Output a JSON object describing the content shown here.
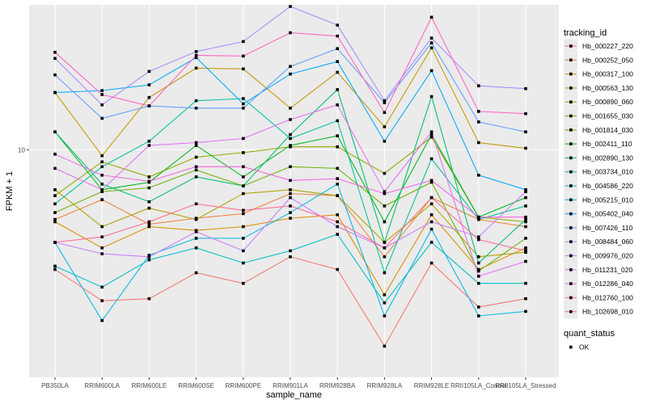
{
  "chart_data": {
    "type": "line",
    "title": "",
    "xlabel": "sample_name",
    "ylabel": "FPKM + 1",
    "yscale": "log10",
    "ylim": [
      2.1,
      27
    ],
    "yticks": [
      10
    ],
    "ytick_labels": [
      "10"
    ],
    "categories": [
      "PB350LA",
      "RRIM600LA",
      "RRIM600LE",
      "RRIM600SE",
      "RRIM600PE",
      "RRIM901LA",
      "RRIM928BA",
      "RRIM928LA",
      "RRIM928LE",
      "RRII105LA_Control",
      "RRII105LA_Stressed"
    ],
    "category_labels": [
      "PB350LA",
      "RRIM600LA",
      "RRIM600LE",
      "RRIM600SE",
      "RRIM600PE",
      "RRIM901LA",
      "RRIM928BA",
      "RRIM928LA",
      "RRIM928LE",
      "RRII105LA_Control",
      "RRII105LA_Stressed"
    ],
    "legend_title": "tracking_id",
    "shape_legend_title": "quant_status",
    "shape_legend_label": "OK",
    "series": [
      {
        "name": "Hb_000227_220",
        "color": "#F8766D",
        "values": [
          4.4,
          3.55,
          3.6,
          4.3,
          4.0,
          4.8,
          4.4,
          2.6,
          4.6,
          3.4,
          3.6
        ]
      },
      {
        "name": "Hb_000252_050",
        "color": "#EC8239",
        "values": [
          6.2,
          7.1,
          6.0,
          6.25,
          6.45,
          7.4,
          7.3,
          4.8,
          7.2,
          6.2,
          5.9
        ]
      },
      {
        "name": "Hb_000317_100",
        "color": "#DB8E00",
        "values": [
          6.1,
          5.1,
          5.9,
          5.75,
          5.9,
          6.25,
          6.4,
          3.7,
          6.4,
          4.4,
          5.1
        ]
      },
      {
        "name": "Hb_000563_130",
        "color": "#C79800",
        "values": [
          14.8,
          9.6,
          14.3,
          17.5,
          17.4,
          13.3,
          17.0,
          11.7,
          20.1,
          10.5,
          10.1
        ]
      },
      {
        "name": "Hb_000890_060",
        "color": "#AFA100",
        "values": [
          7.6,
          5.9,
          6.7,
          6.2,
          7.4,
          7.6,
          7.3,
          5.3,
          6.9,
          4.8,
          4.95
        ]
      },
      {
        "name": "Hb_001655_030",
        "color": "#93AA00",
        "values": [
          7.3,
          9.2,
          8.3,
          9.5,
          9.8,
          10.2,
          10.2,
          8.5,
          10.9,
          6.3,
          6.1
        ]
      },
      {
        "name": "Hb_001814_030",
        "color": "#6BB100",
        "values": [
          6.5,
          7.5,
          7.7,
          8.7,
          7.8,
          8.9,
          8.8,
          6.8,
          8.0,
          4.35,
          5.45
        ]
      },
      {
        "name": "Hb_002411_110",
        "color": "#00B81F",
        "values": [
          11.3,
          7.6,
          8.0,
          10.3,
          8.3,
          10.3,
          11.0,
          6.1,
          11.1,
          6.3,
          7.2
        ]
      },
      {
        "name": "Hb_002890_130",
        "color": "#00BE6C",
        "values": [
          11.3,
          7.9,
          7.0,
          8.3,
          7.8,
          11.1,
          15.1,
          5.3,
          14.4,
          4.6,
          6.2
        ]
      },
      {
        "name": "Hb_003734_010",
        "color": "#00C19F",
        "values": [
          6.9,
          8.9,
          10.6,
          14.0,
          14.2,
          10.8,
          12.2,
          4.3,
          9.4,
          6.2,
          6.8
        ]
      },
      {
        "name": "Hb_004586_220",
        "color": "#00BFC4",
        "values": [
          4.5,
          3.9,
          4.7,
          5.1,
          4.6,
          5.0,
          5.6,
          3.5,
          5.3,
          4.0,
          4.0
        ]
      },
      {
        "name": "Hb_005215_010",
        "color": "#00B8E7",
        "values": [
          5.3,
          3.1,
          4.85,
          5.45,
          5.45,
          6.5,
          7.9,
          3.2,
          5.8,
          3.2,
          3.3
        ]
      },
      {
        "name": "Hb_005402_040",
        "color": "#00A9FF",
        "values": [
          14.8,
          15.0,
          15.6,
          18.8,
          13.7,
          16.8,
          18.3,
          10.6,
          17.2,
          8.4,
          7.6
        ]
      },
      {
        "name": "Hb_007426_110",
        "color": "#619CFF",
        "values": [
          16.7,
          12.4,
          13.5,
          13.3,
          13.3,
          17.7,
          20.0,
          13.8,
          20.8,
          12.1,
          11.3
        ]
      },
      {
        "name": "Hb_008484_060",
        "color": "#A58AFF",
        "values": [
          18.7,
          13.6,
          17.1,
          19.6,
          21.0,
          26.7,
          23.5,
          14.0,
          21.5,
          15.5,
          15.2
        ]
      },
      {
        "name": "Hb_009976_020",
        "color": "#C77CFF",
        "values": [
          5.3,
          4.9,
          4.8,
          5.7,
          5.0,
          7.2,
          5.9,
          5.1,
          6.1,
          5.5,
          7.5
        ]
      },
      {
        "name": "Hb_011231_020",
        "color": "#E36EF6",
        "values": [
          8.8,
          7.6,
          10.3,
          10.5,
          10.8,
          12.3,
          13.6,
          7.5,
          11.3,
          4.2,
          4.65
        ]
      },
      {
        "name": "Hb_012286_040",
        "color": "#F564E3",
        "values": [
          9.7,
          8.4,
          8.05,
          8.9,
          8.9,
          8.1,
          8.2,
          7.4,
          8.1,
          6.3,
          6.3
        ]
      },
      {
        "name": "Hb_012760_100",
        "color": "#FF61C3",
        "values": [
          19.5,
          14.6,
          13.5,
          19.1,
          19.0,
          22.3,
          21.8,
          12.9,
          24.8,
          13.0,
          12.8
        ]
      },
      {
        "name": "Hb_102698_010",
        "color": "#FF6C91",
        "values": [
          5.3,
          5.5,
          6.1,
          6.9,
          6.6,
          6.8,
          6.1,
          5.1,
          7.2,
          5.4,
          5.0
        ]
      }
    ]
  },
  "colors": {
    "panel_background": "#EBEBEB",
    "grid_major": "#FFFFFF",
    "point": "#000000"
  }
}
